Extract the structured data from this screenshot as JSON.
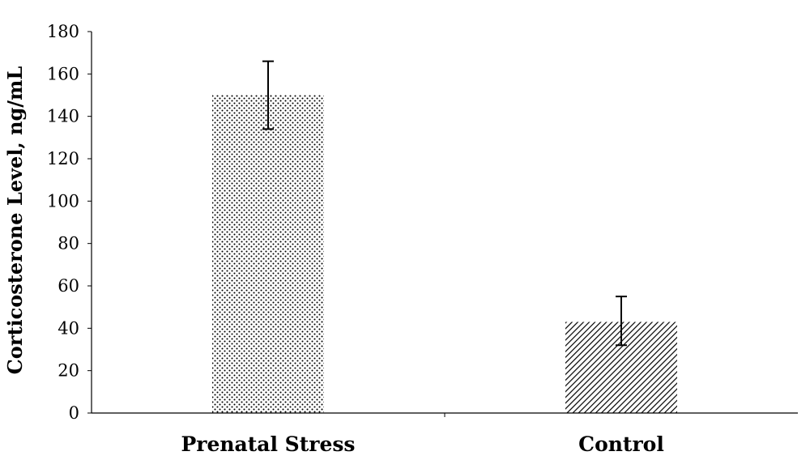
{
  "chart_data": {
    "type": "bar",
    "categories": [
      "Prenatal Stress",
      "Control"
    ],
    "values": [
      150,
      43
    ],
    "error_bars": [
      {
        "lower": 134,
        "upper": 166
      },
      {
        "lower": 32,
        "upper": 55
      }
    ],
    "title": "",
    "xlabel": "",
    "ylabel": "Corticosterone Level, ng/mL",
    "ylim": [
      0,
      180
    ],
    "yticks": [
      0,
      20,
      40,
      60,
      80,
      100,
      120,
      140,
      160,
      180
    ],
    "ytick_labels": [
      "0",
      "20",
      "40",
      "60",
      "80",
      "100",
      "120",
      "140",
      "160",
      "180"
    ],
    "grid": false,
    "legend": "none",
    "bar_patterns": [
      "dots",
      "diagonal-hatch"
    ],
    "colors": {
      "bar_pattern_ink": "#000000",
      "bar_fill": "#ffffff",
      "axis": "#000000",
      "error_bar": "#000000"
    }
  }
}
